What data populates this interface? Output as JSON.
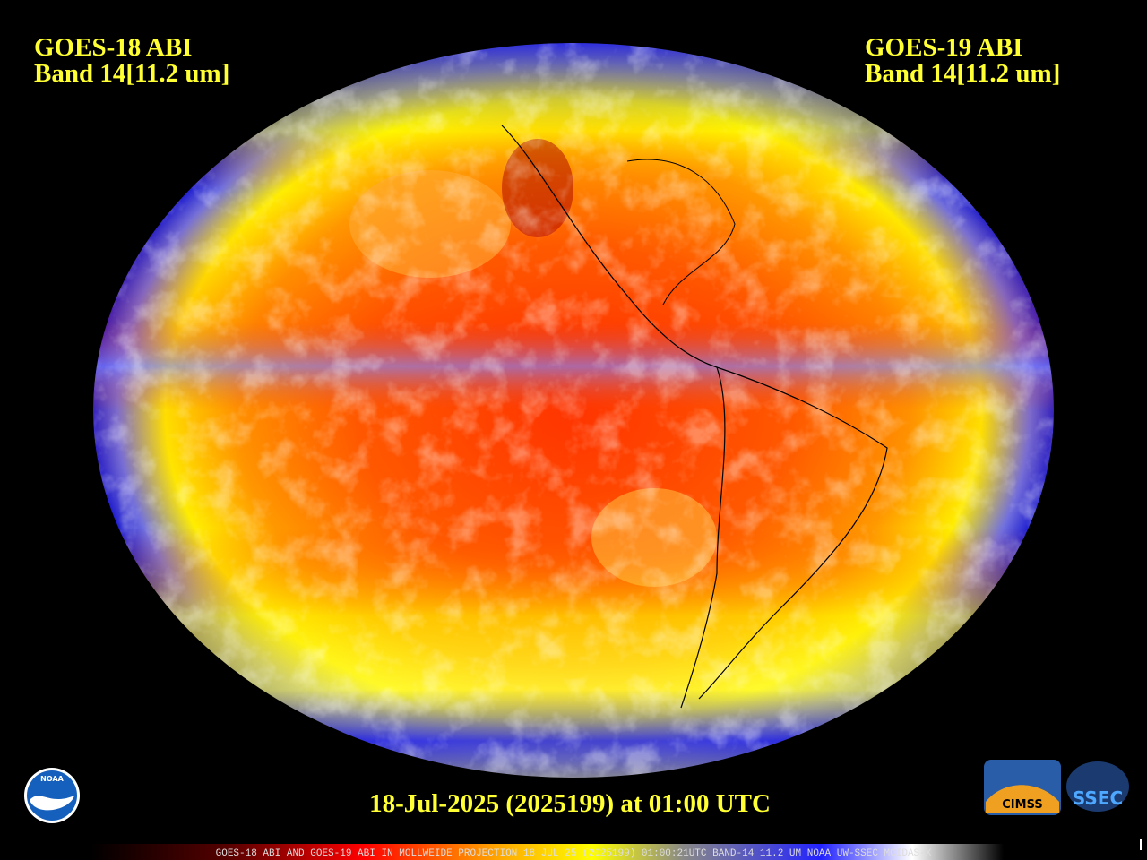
{
  "header": {
    "left": {
      "satellite": "GOES-18 ABI",
      "band": "Band 14[11.2 um]"
    },
    "right": {
      "satellite": "GOES-19 ABI",
      "band": "Band 14[11.2 um]"
    }
  },
  "timestamp": "18-Jul-2025 (2025199) at 01:00 UTC",
  "footer": "GOES-18 ABI AND GOES-19 ABI IN MOLLWEIDE PROJECTION 18 JUL 25 (2025199) 01:00:21UTC BAND-14 11.2 UM NOAA UW-SSEC MCIDAS-X",
  "logos": {
    "noaa": "NOAA",
    "cimss": "CIMSS",
    "ssec": "SSEC"
  }
}
